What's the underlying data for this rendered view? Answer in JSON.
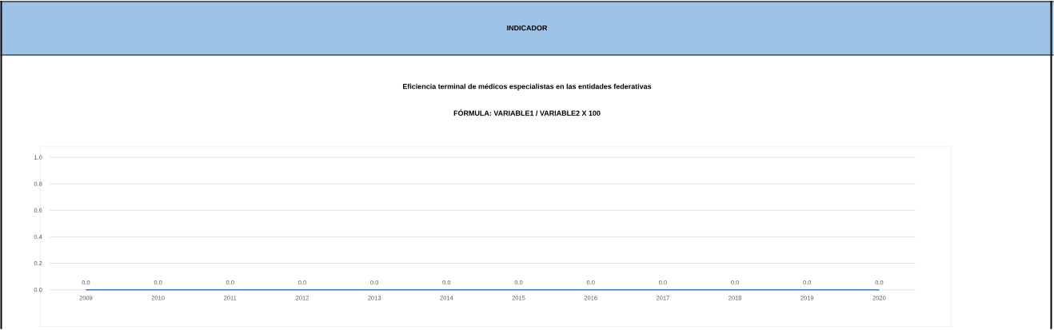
{
  "chart_data": {
    "type": "line",
    "title": "INDICADOR",
    "subtitle": "Eficiencia terminal de médicos especialistas en las entidades federativas",
    "annotations": [
      "FÓRMULA: VARIABLE1 / VARIABLE2 X 100"
    ],
    "categories": [
      "2009",
      "2010",
      "2011",
      "2012",
      "2013",
      "2014",
      "2015",
      "2016",
      "2017",
      "2018",
      "2019",
      "2020"
    ],
    "values": [
      0,
      0,
      0,
      0,
      0,
      0,
      0,
      0,
      0,
      0,
      0,
      0
    ],
    "value_labels": [
      "0.0",
      "0.0",
      "0.0",
      "0.0",
      "0.0",
      "0.0",
      "0.0",
      "0.0",
      "0.0",
      "0.0",
      "0.0",
      "0.0"
    ],
    "color": "#4472c4",
    "marker": "none",
    "grid": "y",
    "ylim": [
      0,
      1
    ],
    "yticks": [
      {
        "value": 0,
        "label": "0.0"
      },
      {
        "value": 0.2,
        "label": "0.2"
      },
      {
        "value": 0.4,
        "label": "0.4"
      },
      {
        "value": 0.6,
        "label": "0.6"
      },
      {
        "value": 0.8,
        "label": "0.8"
      },
      {
        "value": 1,
        "label": "1.0"
      }
    ]
  }
}
